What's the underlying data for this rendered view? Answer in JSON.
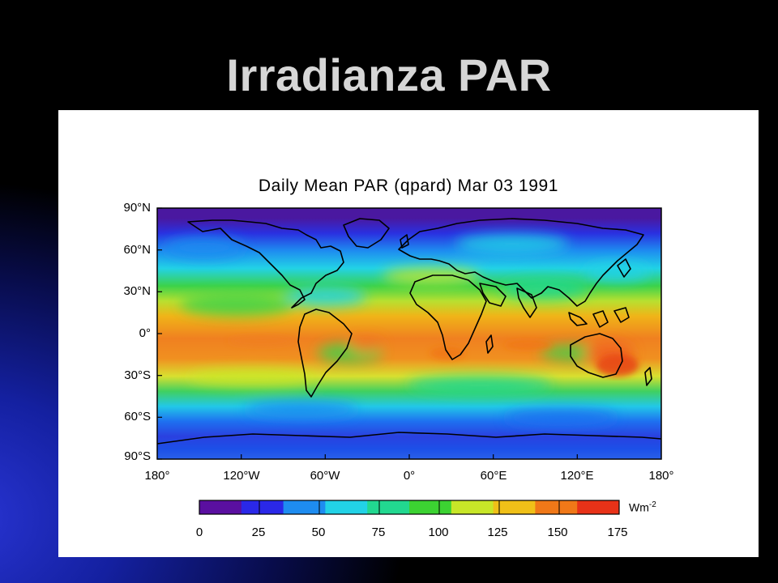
{
  "slide": {
    "title": "Irradianza PAR"
  },
  "map": {
    "title": "Daily Mean PAR (qpard)   Mar 03 1991",
    "lat_ticks": [
      "90°N",
      "60°N",
      "30°N",
      "0°",
      "30°S",
      "60°S",
      "90°S"
    ],
    "lon_ticks": [
      "180°",
      "120°W",
      "60°W",
      "0°",
      "60°E",
      "120°E",
      "180°"
    ],
    "colorbar": {
      "ticks": [
        "0",
        "25",
        "50",
        "75",
        "100",
        "125",
        "150",
        "175"
      ],
      "unit": "Wm",
      "unit_exp": "-2",
      "colors": [
        "#5a0fa0",
        "#2a28e8",
        "#1e8cf0",
        "#22d2e6",
        "#22d890",
        "#3cd232",
        "#c8e628",
        "#f0c018",
        "#f07818",
        "#e83218"
      ]
    },
    "colors": {
      "land_outline": "#000000",
      "polar_night": "#4a18a0"
    }
  }
}
